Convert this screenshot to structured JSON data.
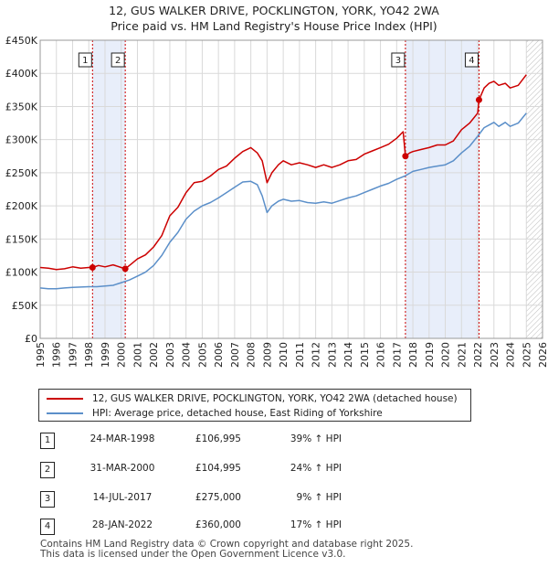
{
  "title_line1": "12, GUS WALKER DRIVE, POCKLINGTON, YORK, YO42 2WA",
  "title_line2": "Price paid vs. HM Land Registry's House Price Index (HPI)",
  "colors": {
    "property": "#cc0000",
    "hpi": "#5b8fc9",
    "shade": "#e8eefa",
    "grid": "#d9d9d9"
  },
  "chart_data": {
    "type": "line",
    "xlim": [
      1995,
      2026
    ],
    "ylim": [
      0,
      450000
    ],
    "x_ticks": [
      1995,
      1996,
      1997,
      1998,
      1999,
      2000,
      2001,
      2002,
      2003,
      2004,
      2005,
      2006,
      2007,
      2008,
      2009,
      2010,
      2011,
      2012,
      2013,
      2014,
      2015,
      2016,
      2017,
      2018,
      2019,
      2020,
      2021,
      2022,
      2023,
      2024,
      2025,
      2026
    ],
    "y_ticks": [
      {
        "value": 0,
        "label": "£0"
      },
      {
        "value": 50000,
        "label": "£50K"
      },
      {
        "value": 100000,
        "label": "£100K"
      },
      {
        "value": 150000,
        "label": "£150K"
      },
      {
        "value": 200000,
        "label": "£200K"
      },
      {
        "value": 250000,
        "label": "£250K"
      },
      {
        "value": 300000,
        "label": "£300K"
      },
      {
        "value": 350000,
        "label": "£350K"
      },
      {
        "value": 400000,
        "label": "£400K"
      },
      {
        "value": 450000,
        "label": "£450K"
      }
    ],
    "forecast_from": 2025.0,
    "shaded_spans": [
      [
        1998.23,
        2000.25
      ],
      [
        2017.54,
        2022.08
      ]
    ],
    "series": [
      {
        "name": "12, GUS WALKER DRIVE, POCKLINGTON, YORK, YO42 2WA (detached house)",
        "x": [
          1995.0,
          1995.5,
          1996.0,
          1996.5,
          1997.0,
          1997.5,
          1998.0,
          1998.23,
          1998.6,
          1999.0,
          1999.5,
          2000.0,
          2000.25,
          2000.6,
          2001.0,
          2001.5,
          2002.0,
          2002.5,
          2003.0,
          2003.5,
          2004.0,
          2004.5,
          2005.0,
          2005.5,
          2006.0,
          2006.5,
          2007.0,
          2007.5,
          2008.0,
          2008.4,
          2008.7,
          2009.0,
          2009.3,
          2009.7,
          2010.0,
          2010.5,
          2011.0,
          2011.5,
          2012.0,
          2012.5,
          2013.0,
          2013.5,
          2014.0,
          2014.5,
          2015.0,
          2015.5,
          2016.0,
          2016.5,
          2017.0,
          2017.4,
          2017.54,
          2017.8,
          2018.0,
          2018.5,
          2019.0,
          2019.5,
          2020.0,
          2020.5,
          2021.0,
          2021.5,
          2022.0,
          2022.08,
          2022.4,
          2022.7,
          2023.0,
          2023.3,
          2023.7,
          2024.0,
          2024.5,
          2025.0
        ],
        "y": [
          107000,
          106000,
          104000,
          105000,
          108000,
          106000,
          107000,
          106995,
          110000,
          108000,
          111000,
          107000,
          104995,
          112000,
          120000,
          126000,
          138000,
          155000,
          185000,
          198000,
          220000,
          235000,
          237000,
          245000,
          255000,
          260000,
          272000,
          282000,
          288000,
          280000,
          268000,
          235000,
          250000,
          262000,
          268000,
          262000,
          265000,
          262000,
          258000,
          262000,
          258000,
          262000,
          268000,
          270000,
          278000,
          283000,
          288000,
          293000,
          302000,
          312000,
          275000,
          280000,
          282000,
          285000,
          288000,
          292000,
          292000,
          298000,
          315000,
          325000,
          340000,
          360000,
          378000,
          385000,
          388000,
          382000,
          385000,
          378000,
          382000,
          398000
        ]
      },
      {
        "name": "HPI: Average price, detached house, East Riding of Yorkshire",
        "x": [
          1995.0,
          1995.5,
          1996.0,
          1996.5,
          1997.0,
          1997.5,
          1998.0,
          1998.5,
          1999.0,
          1999.5,
          2000.0,
          2000.5,
          2001.0,
          2001.5,
          2002.0,
          2002.5,
          2003.0,
          2003.5,
          2004.0,
          2004.5,
          2005.0,
          2005.5,
          2006.0,
          2006.5,
          2007.0,
          2007.5,
          2008.0,
          2008.4,
          2008.7,
          2009.0,
          2009.3,
          2009.7,
          2010.0,
          2010.5,
          2011.0,
          2011.5,
          2012.0,
          2012.5,
          2013.0,
          2013.5,
          2014.0,
          2014.5,
          2015.0,
          2015.5,
          2016.0,
          2016.5,
          2017.0,
          2017.5,
          2018.0,
          2018.5,
          2019.0,
          2019.5,
          2020.0,
          2020.5,
          2021.0,
          2021.5,
          2022.0,
          2022.4,
          2022.7,
          2023.0,
          2023.3,
          2023.7,
          2024.0,
          2024.5,
          2025.0
        ],
        "y": [
          76000,
          75000,
          75000,
          76000,
          77000,
          77500,
          78000,
          78000,
          79000,
          80000,
          84000,
          88000,
          94000,
          100000,
          110000,
          125000,
          145000,
          160000,
          180000,
          192000,
          200000,
          205000,
          212000,
          220000,
          228000,
          236000,
          237000,
          232000,
          215000,
          190000,
          200000,
          207000,
          210000,
          207000,
          208000,
          205000,
          204000,
          206000,
          204000,
          208000,
          212000,
          215000,
          220000,
          225000,
          230000,
          234000,
          240000,
          245000,
          252000,
          255000,
          258000,
          260000,
          262000,
          268000,
          280000,
          290000,
          305000,
          318000,
          322000,
          326000,
          320000,
          326000,
          320000,
          325000,
          340000
        ]
      }
    ],
    "markers": [
      {
        "num": "1",
        "x": 1998.23,
        "y": 106995
      },
      {
        "num": "2",
        "x": 2000.25,
        "y": 104995
      },
      {
        "num": "3",
        "x": 2017.54,
        "y": 275000
      },
      {
        "num": "4",
        "x": 2022.08,
        "y": 360000
      }
    ]
  },
  "legend": {
    "property_label": "12, GUS WALKER DRIVE, POCKLINGTON, YORK, YO42 2WA (detached house)",
    "hpi_label": "HPI: Average price, detached house, East Riding of Yorkshire"
  },
  "sales": [
    {
      "num": "1",
      "date": "24-MAR-1998",
      "price": "£106,995",
      "hpi": "39% ↑ HPI"
    },
    {
      "num": "2",
      "date": "31-MAR-2000",
      "price": "£104,995",
      "hpi": "24% ↑ HPI"
    },
    {
      "num": "3",
      "date": "14-JUL-2017",
      "price": "£275,000",
      "hpi": "9% ↑ HPI"
    },
    {
      "num": "4",
      "date": "28-JAN-2022",
      "price": "£360,000",
      "hpi": "17% ↑ HPI"
    }
  ],
  "footer_line1": "Contains HM Land Registry data © Crown copyright and database right 2025.",
  "footer_line2": "This data is licensed under the Open Government Licence v3.0."
}
